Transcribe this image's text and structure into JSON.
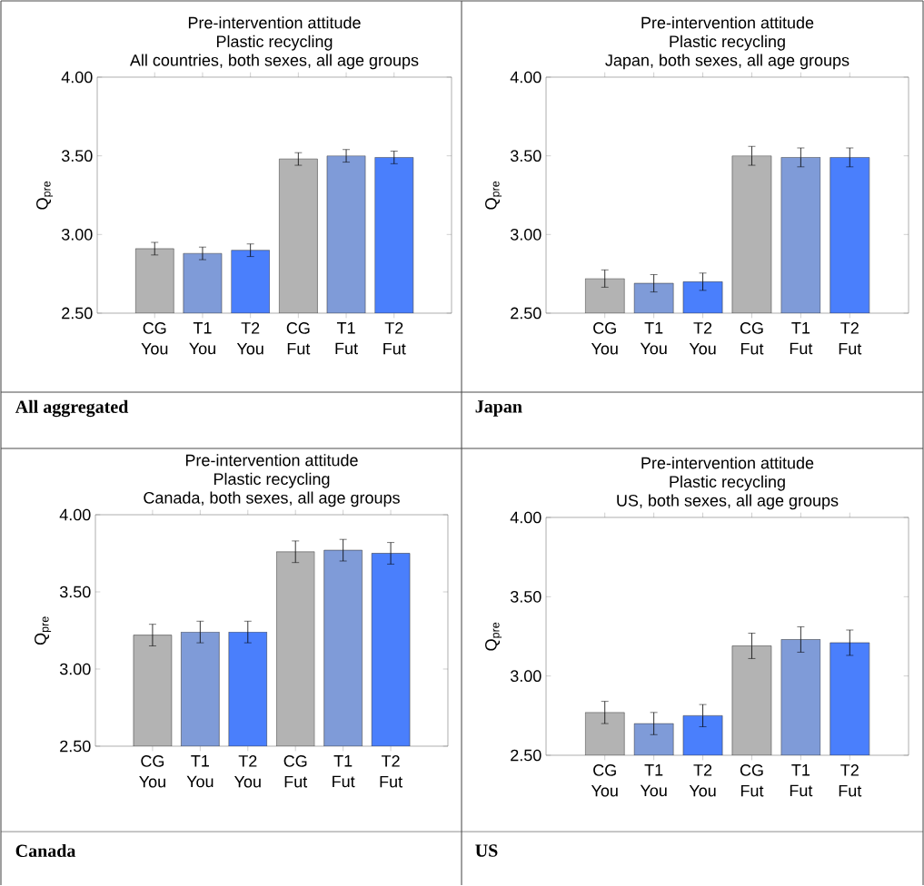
{
  "chart_data": [
    {
      "type": "bar",
      "title": "Pre-intervention attitude",
      "subtitle": "Plastic recycling",
      "annotations": [
        "All countries, both sexes, all age groups",
        "All aggregated"
      ],
      "ylabel": "Q$_{pre}$",
      "categories": [
        "CG You",
        "T1 You",
        "T2 You",
        "CG Fut",
        "T1 Fut",
        "T2 Fut"
      ],
      "values": [
        2.91,
        2.88,
        2.9,
        3.48,
        3.5,
        3.49
      ],
      "errors": [
        0.04,
        0.04,
        0.04,
        0.04,
        0.04,
        0.04
      ],
      "colors": [
        "#b3b3b3",
        "#7f9bd8",
        "#4a7ffc",
        "#b3b3b3",
        "#7f9bd8",
        "#4a7ffc"
      ],
      "ylim": [
        2.5,
        4.0
      ],
      "yticks": [
        {
          "value": 2.5,
          "label": "2.50"
        },
        {
          "value": 3.0,
          "label": "3.00"
        },
        {
          "value": 3.5,
          "label": "3.50"
        },
        {
          "value": 4.0,
          "label": "4.00"
        }
      ]
    },
    {
      "type": "bar",
      "title": "Pre-intervention attitude",
      "subtitle": "Plastic recycling",
      "annotations": [
        "Japan, both sexes, all age groups",
        "Japan"
      ],
      "ylabel": "Q$_{pre}$",
      "categories": [
        "CG You",
        "T1 You",
        "T2 You",
        "CG Fut",
        "T1 Fut",
        "T2 Fut"
      ],
      "values": [
        2.72,
        2.69,
        2.7,
        3.5,
        3.49,
        3.49
      ],
      "errors": [
        0.055,
        0.055,
        0.055,
        0.06,
        0.06,
        0.06
      ],
      "colors": [
        "#b3b3b3",
        "#7f9bd8",
        "#4a7ffc",
        "#b3b3b3",
        "#7f9bd8",
        "#4a7ffc"
      ],
      "ylim": [
        2.5,
        4.0
      ],
      "yticks": [
        {
          "value": 2.5,
          "label": "2.50"
        },
        {
          "value": 3.0,
          "label": "3.00"
        },
        {
          "value": 3.5,
          "label": "3.50"
        },
        {
          "value": 4.0,
          "label": "4.00"
        }
      ]
    },
    {
      "type": "bar",
      "title": "Pre-intervention attitude",
      "subtitle": "Plastic recycling",
      "annotations": [
        "Canada, both sexes, all age groups",
        "Canada"
      ],
      "ylabel": "Q$_{pre}$",
      "categories": [
        "CG You",
        "T1 You",
        "T2 You",
        "CG Fut",
        "T1 Fut",
        "T2 Fut"
      ],
      "values": [
        3.22,
        3.24,
        3.24,
        3.76,
        3.77,
        3.75
      ],
      "errors": [
        0.07,
        0.07,
        0.07,
        0.07,
        0.07,
        0.07
      ],
      "colors": [
        "#b3b3b3",
        "#7f9bd8",
        "#4a7ffc",
        "#b3b3b3",
        "#7f9bd8",
        "#4a7ffc"
      ],
      "ylim": [
        2.5,
        4.0
      ],
      "yticks": [
        {
          "value": 2.5,
          "label": "2.50"
        },
        {
          "value": 3.0,
          "label": "3.00"
        },
        {
          "value": 3.5,
          "label": "3.50"
        },
        {
          "value": 4.0,
          "label": "4.00"
        }
      ]
    },
    {
      "type": "bar",
      "title": "Pre-intervention attitude",
      "subtitle": "Plastic recycling",
      "annotations": [
        "US, both sexes, all age groups",
        "US"
      ],
      "ylabel": "Q$_{pre}$",
      "categories": [
        "CG You",
        "T1 You",
        "T2 You",
        "CG Fut",
        "T1 Fut",
        "T2 Fut"
      ],
      "values": [
        2.77,
        2.7,
        2.75,
        3.19,
        3.23,
        3.21
      ],
      "errors": [
        0.07,
        0.07,
        0.07,
        0.08,
        0.08,
        0.08
      ],
      "colors": [
        "#b3b3b3",
        "#7f9bd8",
        "#4a7ffc",
        "#b3b3b3",
        "#7f9bd8",
        "#4a7ffc"
      ],
      "ylim": [
        2.5,
        4.0
      ],
      "yticks": [
        {
          "value": 2.5,
          "label": "2.50"
        },
        {
          "value": 3.0,
          "label": "3.00"
        },
        {
          "value": 3.5,
          "label": "3.50"
        },
        {
          "value": 4.0,
          "label": "4.00"
        }
      ]
    }
  ]
}
